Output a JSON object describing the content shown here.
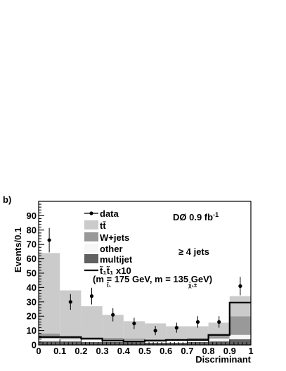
{
  "panel_label": "b)",
  "chart_data": {
    "type": "bar",
    "stacked": true,
    "xlabel": "Discriminant",
    "ylabel": "Events/0.1",
    "xlim": [
      0,
      1
    ],
    "ylim": [
      0,
      100
    ],
    "x_bin_edges": [
      0,
      0.1,
      0.2,
      0.3,
      0.4,
      0.5,
      0.6,
      0.7,
      0.8,
      0.9,
      1.0
    ],
    "x_ticks": [
      0,
      0.1,
      0.2,
      0.3,
      0.4,
      0.5,
      0.6,
      0.7,
      0.8,
      0.9,
      1
    ],
    "x_tick_labels": [
      "0",
      "0.1",
      "0.2",
      "0.3",
      "0.4",
      "0.5",
      "0.6",
      "0.7",
      "0.8",
      "0.9",
      "1"
    ],
    "y_ticks": [
      0,
      10,
      20,
      30,
      40,
      50,
      60,
      70,
      80,
      90
    ],
    "y_tick_labels": [
      "0",
      "10",
      "20",
      "30",
      "40",
      "50",
      "60",
      "70",
      "80",
      "90"
    ],
    "series": [
      {
        "name": "multijet",
        "style": "fill",
        "color": "#606060",
        "values": [
          2.5,
          2.5,
          2.0,
          2.0,
          2.0,
          1.5,
          1.5,
          2.0,
          2.5,
          4.0
        ]
      },
      {
        "name": "other",
        "style": "fill",
        "color": "#f6f6f6",
        "values": [
          2.0,
          1.5,
          1.5,
          1.5,
          1.5,
          1.5,
          1.5,
          1.5,
          2.0,
          3.0
        ]
      },
      {
        "name": "W+jets",
        "style": "fill",
        "color": "#999999",
        "values": [
          3.5,
          2.0,
          1.5,
          1.5,
          1.0,
          1.0,
          1.0,
          1.5,
          3.0,
          13.0
        ]
      },
      {
        "name": "tt̄",
        "style": "fill",
        "color": "#cbcbcb",
        "values": [
          56.0,
          32.0,
          22.0,
          16.0,
          12.0,
          11.0,
          9.0,
          8.0,
          8.0,
          14.0
        ]
      },
      {
        "name": "t̃₁t̃₁ x10",
        "style": "step",
        "color": "#000000",
        "values": [
          5.5,
          5.5,
          4.5,
          3.0,
          2.5,
          3.0,
          3.5,
          3.5,
          7.0,
          29.5
        ]
      }
    ],
    "data_points": {
      "name": "data",
      "x": [
        0.05,
        0.15,
        0.25,
        0.35,
        0.45,
        0.55,
        0.65,
        0.75,
        0.85,
        0.95
      ],
      "y": [
        73,
        30,
        34,
        21,
        15,
        10,
        12,
        16,
        16,
        41
      ],
      "err": [
        8.5,
        5.5,
        5.8,
        4.6,
        3.9,
        3.2,
        3.5,
        4.0,
        4.0,
        6.4
      ]
    },
    "legend": {
      "placement": "top-left",
      "entries": [
        {
          "label": "data",
          "kind": "marker"
        },
        {
          "label": "tt̄",
          "kind": "fill",
          "color": "#cbcbcb"
        },
        {
          "label": "W+jets",
          "kind": "fill",
          "color": "#999999"
        },
        {
          "label": "other",
          "kind": "fill",
          "color": "#f6f6f6"
        },
        {
          "label": "multijet",
          "kind": "fill",
          "color": "#606060"
        },
        {
          "label": "t̃₁t̃₁ x10",
          "kind": "line",
          "color": "#000000"
        }
      ],
      "signal_note": "(m   = 175 GeV, m   = 135 GeV)",
      "signal_note_sub1": "t̃₁",
      "signal_note_sub2": "χ̃₁±"
    },
    "annotations": {
      "experiment": "DØ 0.9 fb",
      "experiment_sup": "-1",
      "jets": "≥ 4 jets"
    },
    "grid": false
  }
}
